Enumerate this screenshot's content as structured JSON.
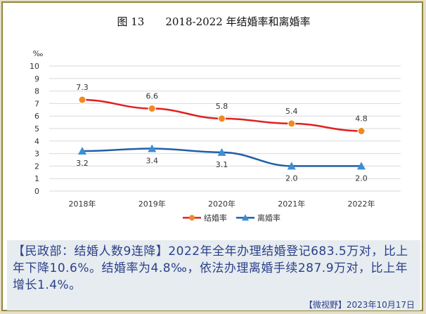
{
  "chart_data": {
    "type": "line",
    "title": "图 13　　2018-2022 年结婚率和离婚率",
    "ylabel": "‰",
    "categories": [
      "2018年",
      "2019年",
      "2020年",
      "2021年",
      "2022年"
    ],
    "ylim": [
      0,
      10
    ],
    "yticks": [
      0,
      1,
      2,
      3,
      4,
      5,
      6,
      7,
      8,
      9,
      10
    ],
    "grid": true,
    "legend_position": "bottom",
    "series": [
      {
        "name": "结婚率",
        "values": [
          7.3,
          6.6,
          5.8,
          5.4,
          4.8
        ],
        "labels": [
          "7.3",
          "6.6",
          "5.8",
          "5.4",
          "4.8"
        ],
        "color": "#e02020",
        "marker": "circle",
        "marker_color": "#f08a20",
        "label_pos": "above"
      },
      {
        "name": "离婚率",
        "values": [
          3.2,
          3.4,
          3.1,
          2.0,
          2.0
        ],
        "labels": [
          "3.2",
          "3.4",
          "3.1",
          "2.0",
          "2.0"
        ],
        "color": "#1f5fa8",
        "marker": "triangle",
        "marker_color": "#3b8fd4",
        "label_pos": "below"
      }
    ]
  },
  "caption": {
    "text": "【民政部：结婚人数9连降】2022年全年办理结婚登记683.5万对，比上年下降10.6%。结婚率为4.8‰，依法办理离婚手续287.9万对，比上年增长1.4%。"
  },
  "footer": {
    "text": "【微视野】2023年10月17日"
  }
}
